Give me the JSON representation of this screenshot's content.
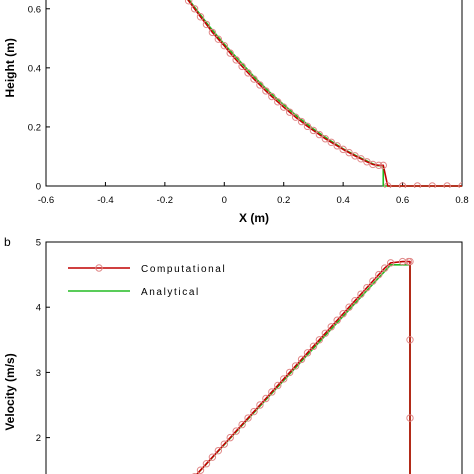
{
  "chart_data": [
    {
      "type": "line",
      "panel_label": "",
      "xlabel": "X (m)",
      "ylabel": "Height (m)",
      "xlim": [
        -0.6,
        0.8
      ],
      "ylim": [
        0,
        0.65
      ],
      "x_ticks": [
        "-0.6",
        "-0.4",
        "-0.2",
        "0",
        "0.2",
        "0.4",
        "0.6",
        "0.8"
      ],
      "y_ticks": [
        "0",
        "0.2",
        "0.4",
        "0.6"
      ],
      "grid": false,
      "series": [
        {
          "name": "Computational",
          "color": "#c00000",
          "marker": "circle",
          "points": [
            [
              -0.15,
              0.67
            ],
            [
              -0.12,
              0.627
            ],
            [
              -0.1,
              0.6
            ],
            [
              -0.08,
              0.573
            ],
            [
              -0.06,
              0.547
            ],
            [
              -0.04,
              0.52
            ],
            [
              -0.02,
              0.497
            ],
            [
              0.0,
              0.475
            ],
            [
              0.02,
              0.45
            ],
            [
              0.04,
              0.427
            ],
            [
              0.06,
              0.405
            ],
            [
              0.08,
              0.383
            ],
            [
              0.1,
              0.362
            ],
            [
              0.12,
              0.342
            ],
            [
              0.14,
              0.322
            ],
            [
              0.16,
              0.303
            ],
            [
              0.18,
              0.285
            ],
            [
              0.2,
              0.267
            ],
            [
              0.22,
              0.25
            ],
            [
              0.24,
              0.233
            ],
            [
              0.26,
              0.218
            ],
            [
              0.28,
              0.202
            ],
            [
              0.3,
              0.188
            ],
            [
              0.32,
              0.174
            ],
            [
              0.34,
              0.16
            ],
            [
              0.36,
              0.148
            ],
            [
              0.38,
              0.136
            ],
            [
              0.4,
              0.124
            ],
            [
              0.42,
              0.113
            ],
            [
              0.44,
              0.102
            ],
            [
              0.46,
              0.092
            ],
            [
              0.48,
              0.082
            ],
            [
              0.5,
              0.073
            ],
            [
              0.52,
              0.07
            ],
            [
              0.535,
              0.07
            ],
            [
              0.55,
              0.0
            ],
            [
              0.6,
              0.0
            ],
            [
              0.65,
              0.0
            ],
            [
              0.7,
              0.0
            ],
            [
              0.75,
              0.0
            ],
            [
              0.8,
              0.0
            ]
          ]
        },
        {
          "name": "Analytical",
          "color": "#22bb22",
          "marker": "none",
          "points": [
            [
              -0.15,
              0.675
            ],
            [
              -0.1,
              0.605
            ],
            [
              -0.05,
              0.54
            ],
            [
              0.0,
              0.48
            ],
            [
              0.05,
              0.425
            ],
            [
              0.1,
              0.37
            ],
            [
              0.15,
              0.32
            ],
            [
              0.2,
              0.275
            ],
            [
              0.25,
              0.232
            ],
            [
              0.3,
              0.193
            ],
            [
              0.35,
              0.158
            ],
            [
              0.4,
              0.126
            ],
            [
              0.45,
              0.099
            ],
            [
              0.5,
              0.075
            ],
            [
              0.515,
              0.069
            ],
            [
              0.535,
              0.069
            ],
            [
              0.535,
              0.0
            ],
            [
              0.8,
              0.0
            ]
          ]
        }
      ]
    },
    {
      "type": "line",
      "panel_label": "b",
      "xlabel": "",
      "ylabel": "Velocity (m/s)",
      "ylim": [
        1.35,
        5
      ],
      "y_ticks": [
        "2",
        "3",
        "4",
        "5"
      ],
      "grid": false,
      "legend": {
        "placement": "top-left",
        "entries": [
          "Computational",
          "Analytical"
        ]
      },
      "series": [
        {
          "name": "Computational",
          "color": "#c00000",
          "marker": "circle",
          "points": [
            [
              -0.1,
              1.4
            ],
            [
              -0.08,
              1.5
            ],
            [
              -0.06,
              1.6
            ],
            [
              -0.04,
              1.7
            ],
            [
              -0.02,
              1.8
            ],
            [
              0.0,
              1.9
            ],
            [
              0.02,
              2.0
            ],
            [
              0.04,
              2.1
            ],
            [
              0.06,
              2.2
            ],
            [
              0.08,
              2.3
            ],
            [
              0.1,
              2.4
            ],
            [
              0.12,
              2.5
            ],
            [
              0.14,
              2.6
            ],
            [
              0.16,
              2.7
            ],
            [
              0.18,
              2.8
            ],
            [
              0.2,
              2.9
            ],
            [
              0.22,
              3.0
            ],
            [
              0.24,
              3.1
            ],
            [
              0.26,
              3.2
            ],
            [
              0.28,
              3.3
            ],
            [
              0.3,
              3.4
            ],
            [
              0.32,
              3.5
            ],
            [
              0.34,
              3.6
            ],
            [
              0.36,
              3.7
            ],
            [
              0.38,
              3.8
            ],
            [
              0.4,
              3.9
            ],
            [
              0.42,
              4.0
            ],
            [
              0.44,
              4.1
            ],
            [
              0.46,
              4.2
            ],
            [
              0.48,
              4.3
            ],
            [
              0.5,
              4.4
            ],
            [
              0.52,
              4.5
            ],
            [
              0.54,
              4.6
            ],
            [
              0.56,
              4.68
            ],
            [
              0.6,
              4.7
            ],
            [
              0.62,
              4.7
            ],
            [
              0.625,
              4.7
            ],
            [
              0.625,
              3.5
            ],
            [
              0.625,
              2.3
            ],
            [
              0.625,
              1.35
            ]
          ]
        },
        {
          "name": "Analytical",
          "color": "#22bb22",
          "marker": "none",
          "points": [
            [
              -0.11,
              1.35
            ],
            [
              0.56,
              4.65
            ],
            [
              0.625,
              4.65
            ],
            [
              0.625,
              1.35
            ]
          ]
        }
      ]
    }
  ]
}
